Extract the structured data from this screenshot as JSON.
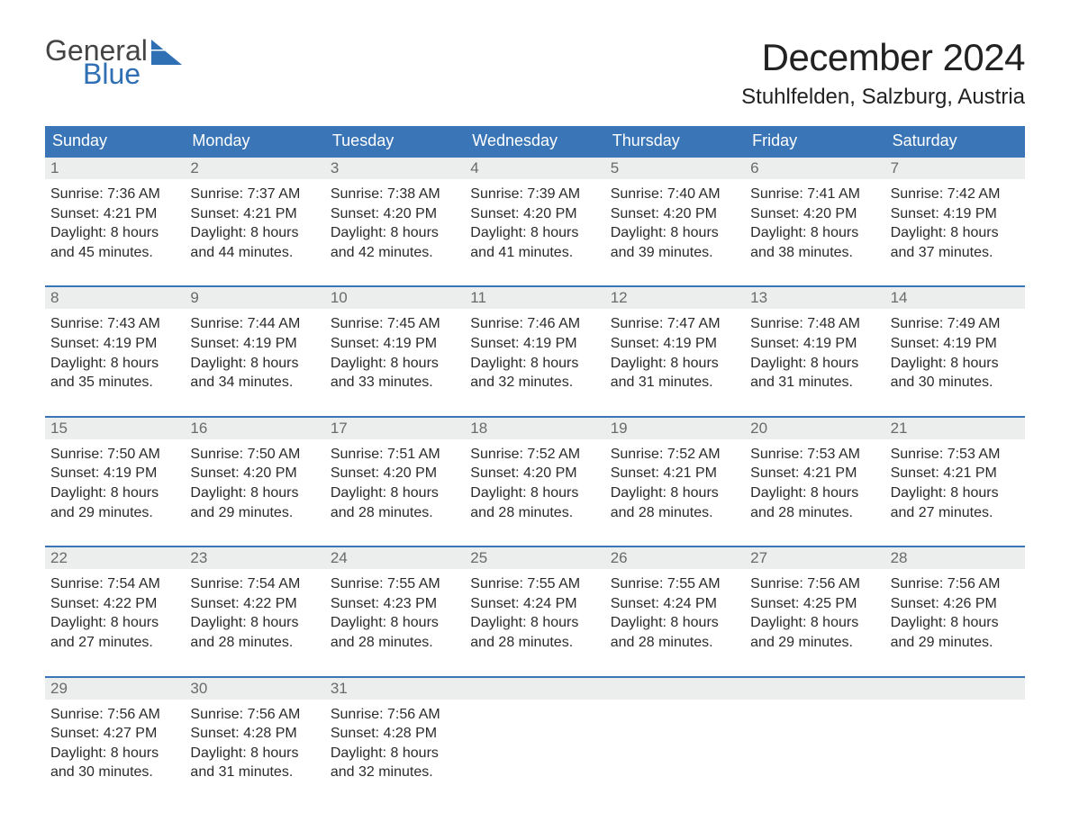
{
  "brand": {
    "line1": "General",
    "line2": "Blue",
    "accent_color": "#2f6fb3",
    "text_color": "#444444"
  },
  "header": {
    "month_title": "December 2024",
    "location": "Stuhlfelden, Salzburg, Austria"
  },
  "calendar": {
    "type": "table",
    "header_bg": "#3a76b7",
    "header_text_color": "#ffffff",
    "daynum_bg": "#eceded",
    "daynum_color": "#6a6a6a",
    "week_rule_color": "#3a76b7",
    "body_text_color": "#2b2b2b",
    "columns": [
      "Sunday",
      "Monday",
      "Tuesday",
      "Wednesday",
      "Thursday",
      "Friday",
      "Saturday"
    ],
    "font_family": "Arial",
    "header_fontsize": 18,
    "daynum_fontsize": 17,
    "cell_fontsize": 16,
    "weeks": [
      [
        {
          "n": "1",
          "sunrise": "Sunrise: 7:36 AM",
          "sunset": "Sunset: 4:21 PM",
          "d1": "Daylight: 8 hours",
          "d2": "and 45 minutes."
        },
        {
          "n": "2",
          "sunrise": "Sunrise: 7:37 AM",
          "sunset": "Sunset: 4:21 PM",
          "d1": "Daylight: 8 hours",
          "d2": "and 44 minutes."
        },
        {
          "n": "3",
          "sunrise": "Sunrise: 7:38 AM",
          "sunset": "Sunset: 4:20 PM",
          "d1": "Daylight: 8 hours",
          "d2": "and 42 minutes."
        },
        {
          "n": "4",
          "sunrise": "Sunrise: 7:39 AM",
          "sunset": "Sunset: 4:20 PM",
          "d1": "Daylight: 8 hours",
          "d2": "and 41 minutes."
        },
        {
          "n": "5",
          "sunrise": "Sunrise: 7:40 AM",
          "sunset": "Sunset: 4:20 PM",
          "d1": "Daylight: 8 hours",
          "d2": "and 39 minutes."
        },
        {
          "n": "6",
          "sunrise": "Sunrise: 7:41 AM",
          "sunset": "Sunset: 4:20 PM",
          "d1": "Daylight: 8 hours",
          "d2": "and 38 minutes."
        },
        {
          "n": "7",
          "sunrise": "Sunrise: 7:42 AM",
          "sunset": "Sunset: 4:19 PM",
          "d1": "Daylight: 8 hours",
          "d2": "and 37 minutes."
        }
      ],
      [
        {
          "n": "8",
          "sunrise": "Sunrise: 7:43 AM",
          "sunset": "Sunset: 4:19 PM",
          "d1": "Daylight: 8 hours",
          "d2": "and 35 minutes."
        },
        {
          "n": "9",
          "sunrise": "Sunrise: 7:44 AM",
          "sunset": "Sunset: 4:19 PM",
          "d1": "Daylight: 8 hours",
          "d2": "and 34 minutes."
        },
        {
          "n": "10",
          "sunrise": "Sunrise: 7:45 AM",
          "sunset": "Sunset: 4:19 PM",
          "d1": "Daylight: 8 hours",
          "d2": "and 33 minutes."
        },
        {
          "n": "11",
          "sunrise": "Sunrise: 7:46 AM",
          "sunset": "Sunset: 4:19 PM",
          "d1": "Daylight: 8 hours",
          "d2": "and 32 minutes."
        },
        {
          "n": "12",
          "sunrise": "Sunrise: 7:47 AM",
          "sunset": "Sunset: 4:19 PM",
          "d1": "Daylight: 8 hours",
          "d2": "and 31 minutes."
        },
        {
          "n": "13",
          "sunrise": "Sunrise: 7:48 AM",
          "sunset": "Sunset: 4:19 PM",
          "d1": "Daylight: 8 hours",
          "d2": "and 31 minutes."
        },
        {
          "n": "14",
          "sunrise": "Sunrise: 7:49 AM",
          "sunset": "Sunset: 4:19 PM",
          "d1": "Daylight: 8 hours",
          "d2": "and 30 minutes."
        }
      ],
      [
        {
          "n": "15",
          "sunrise": "Sunrise: 7:50 AM",
          "sunset": "Sunset: 4:19 PM",
          "d1": "Daylight: 8 hours",
          "d2": "and 29 minutes."
        },
        {
          "n": "16",
          "sunrise": "Sunrise: 7:50 AM",
          "sunset": "Sunset: 4:20 PM",
          "d1": "Daylight: 8 hours",
          "d2": "and 29 minutes."
        },
        {
          "n": "17",
          "sunrise": "Sunrise: 7:51 AM",
          "sunset": "Sunset: 4:20 PM",
          "d1": "Daylight: 8 hours",
          "d2": "and 28 minutes."
        },
        {
          "n": "18",
          "sunrise": "Sunrise: 7:52 AM",
          "sunset": "Sunset: 4:20 PM",
          "d1": "Daylight: 8 hours",
          "d2": "and 28 minutes."
        },
        {
          "n": "19",
          "sunrise": "Sunrise: 7:52 AM",
          "sunset": "Sunset: 4:21 PM",
          "d1": "Daylight: 8 hours",
          "d2": "and 28 minutes."
        },
        {
          "n": "20",
          "sunrise": "Sunrise: 7:53 AM",
          "sunset": "Sunset: 4:21 PM",
          "d1": "Daylight: 8 hours",
          "d2": "and 28 minutes."
        },
        {
          "n": "21",
          "sunrise": "Sunrise: 7:53 AM",
          "sunset": "Sunset: 4:21 PM",
          "d1": "Daylight: 8 hours",
          "d2": "and 27 minutes."
        }
      ],
      [
        {
          "n": "22",
          "sunrise": "Sunrise: 7:54 AM",
          "sunset": "Sunset: 4:22 PM",
          "d1": "Daylight: 8 hours",
          "d2": "and 27 minutes."
        },
        {
          "n": "23",
          "sunrise": "Sunrise: 7:54 AM",
          "sunset": "Sunset: 4:22 PM",
          "d1": "Daylight: 8 hours",
          "d2": "and 28 minutes."
        },
        {
          "n": "24",
          "sunrise": "Sunrise: 7:55 AM",
          "sunset": "Sunset: 4:23 PM",
          "d1": "Daylight: 8 hours",
          "d2": "and 28 minutes."
        },
        {
          "n": "25",
          "sunrise": "Sunrise: 7:55 AM",
          "sunset": "Sunset: 4:24 PM",
          "d1": "Daylight: 8 hours",
          "d2": "and 28 minutes."
        },
        {
          "n": "26",
          "sunrise": "Sunrise: 7:55 AM",
          "sunset": "Sunset: 4:24 PM",
          "d1": "Daylight: 8 hours",
          "d2": "and 28 minutes."
        },
        {
          "n": "27",
          "sunrise": "Sunrise: 7:56 AM",
          "sunset": "Sunset: 4:25 PM",
          "d1": "Daylight: 8 hours",
          "d2": "and 29 minutes."
        },
        {
          "n": "28",
          "sunrise": "Sunrise: 7:56 AM",
          "sunset": "Sunset: 4:26 PM",
          "d1": "Daylight: 8 hours",
          "d2": "and 29 minutes."
        }
      ],
      [
        {
          "n": "29",
          "sunrise": "Sunrise: 7:56 AM",
          "sunset": "Sunset: 4:27 PM",
          "d1": "Daylight: 8 hours",
          "d2": "and 30 minutes."
        },
        {
          "n": "30",
          "sunrise": "Sunrise: 7:56 AM",
          "sunset": "Sunset: 4:28 PM",
          "d1": "Daylight: 8 hours",
          "d2": "and 31 minutes."
        },
        {
          "n": "31",
          "sunrise": "Sunrise: 7:56 AM",
          "sunset": "Sunset: 4:28 PM",
          "d1": "Daylight: 8 hours",
          "d2": "and 32 minutes."
        },
        null,
        null,
        null,
        null
      ]
    ]
  }
}
